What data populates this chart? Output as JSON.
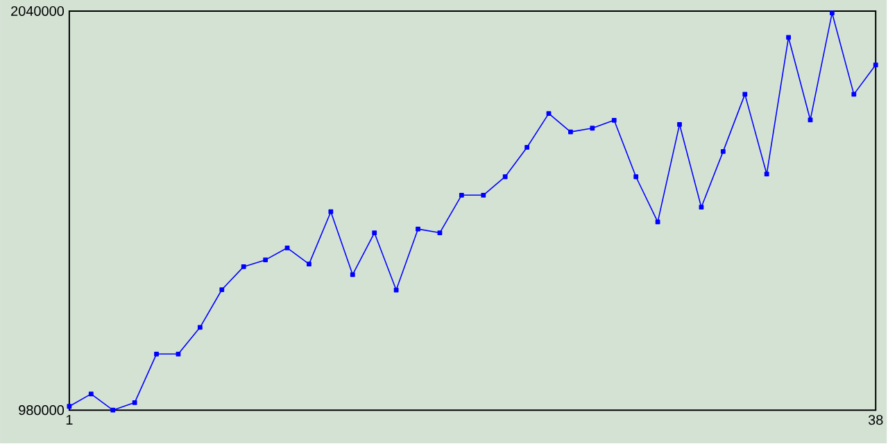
{
  "chart_data": {
    "type": "line",
    "x": [
      1,
      2,
      3,
      4,
      5,
      6,
      7,
      8,
      9,
      10,
      11,
      12,
      13,
      14,
      15,
      16,
      17,
      18,
      19,
      20,
      21,
      22,
      23,
      24,
      25,
      26,
      27,
      28,
      29,
      30,
      31,
      32,
      33,
      34,
      35,
      36,
      37,
      38
    ],
    "series": [
      {
        "color": "#0000ff",
        "values": [
          990000,
          1023000,
          980000,
          1000000,
          1129000,
          1129000,
          1200000,
          1300000,
          1361000,
          1379000,
          1411000,
          1368000,
          1507000,
          1340000,
          1451000,
          1299000,
          1461000,
          1451000,
          1551000,
          1551000,
          1600000,
          1678000,
          1768000,
          1719000,
          1729000,
          1750000,
          1600000,
          1480000,
          1739000,
          1519000,
          1667000,
          1819000,
          1607000,
          1970000,
          1751000,
          2035000,
          1819000,
          1897000
        ]
      }
    ],
    "xlim": [
      1,
      38
    ],
    "xticks": [
      1,
      38
    ],
    "ylim": [
      980000,
      2040000
    ],
    "yticks": [
      980000,
      2040000
    ],
    "marker": "square",
    "line_style": "solid"
  }
}
